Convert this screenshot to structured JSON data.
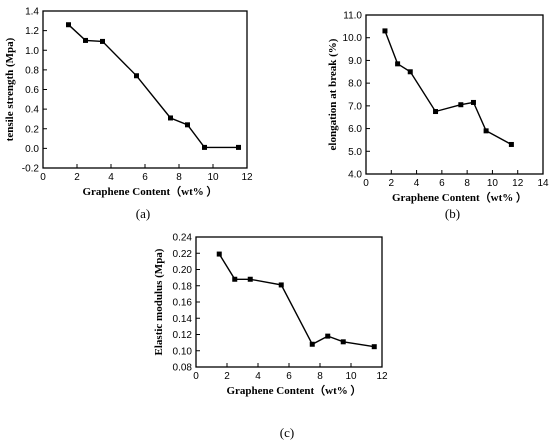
{
  "chart_data": [
    {
      "type": "line",
      "panel": "(a)",
      "xlabel": "Graphene Content（wt%  ）",
      "ylabel": "tensile strength  (Mpa)",
      "xlim": [
        0,
        12
      ],
      "ylim": [
        -0.2,
        1.4
      ],
      "xticks": [
        0,
        2,
        4,
        6,
        8,
        10,
        12
      ],
      "yticks": [
        "-0.2",
        "0.0",
        "0.2",
        "0.4",
        "0.6",
        "0.8",
        "1.0",
        "1.2",
        "1.4"
      ],
      "grid": false,
      "series": [
        {
          "x": [
            1.5,
            2.5,
            3.5,
            5.5,
            7.5,
            8.5,
            9.5,
            11.5
          ],
          "values": [
            1.26,
            1.1,
            1.09,
            0.74,
            0.31,
            0.24,
            0.01,
            0.01
          ]
        }
      ]
    },
    {
      "type": "line",
      "panel": "(b)",
      "xlabel": "Graphene Content（wt%  ）",
      "ylabel": "elongation at break (%)",
      "xlim": [
        0,
        14
      ],
      "ylim": [
        4,
        11
      ],
      "xticks": [
        0,
        2,
        4,
        6,
        8,
        10,
        12,
        14
      ],
      "yticks": [
        "4.0",
        "5.0",
        "6.0",
        "7.0",
        "8.0",
        "9.0",
        "10.0",
        "11.0"
      ],
      "grid": false,
      "series": [
        {
          "x": [
            1.5,
            2.5,
            3.5,
            5.5,
            7.5,
            8.5,
            9.5,
            11.5
          ],
          "values": [
            10.3,
            8.85,
            8.5,
            6.75,
            7.05,
            7.15,
            5.9,
            5.3
          ]
        }
      ]
    },
    {
      "type": "line",
      "panel": "(c)",
      "xlabel": "Graphene Content（wt%  ）",
      "ylabel": "Elastic modulus (Mpa)",
      "xlim": [
        0,
        12
      ],
      "ylim": [
        0.08,
        0.24
      ],
      "xticks": [
        0,
        2,
        4,
        6,
        8,
        10,
        12
      ],
      "yticks": [
        "0.08",
        "0.10",
        "0.12",
        "0.14",
        "0.16",
        "0.18",
        "0.20",
        "0.22",
        "0.24"
      ],
      "grid": false,
      "series": [
        {
          "x": [
            1.5,
            2.5,
            3.5,
            5.5,
            7.5,
            8.5,
            9.5,
            11.5
          ],
          "values": [
            0.219,
            0.188,
            0.188,
            0.181,
            0.108,
            0.118,
            0.111,
            0.105
          ]
        }
      ]
    }
  ]
}
